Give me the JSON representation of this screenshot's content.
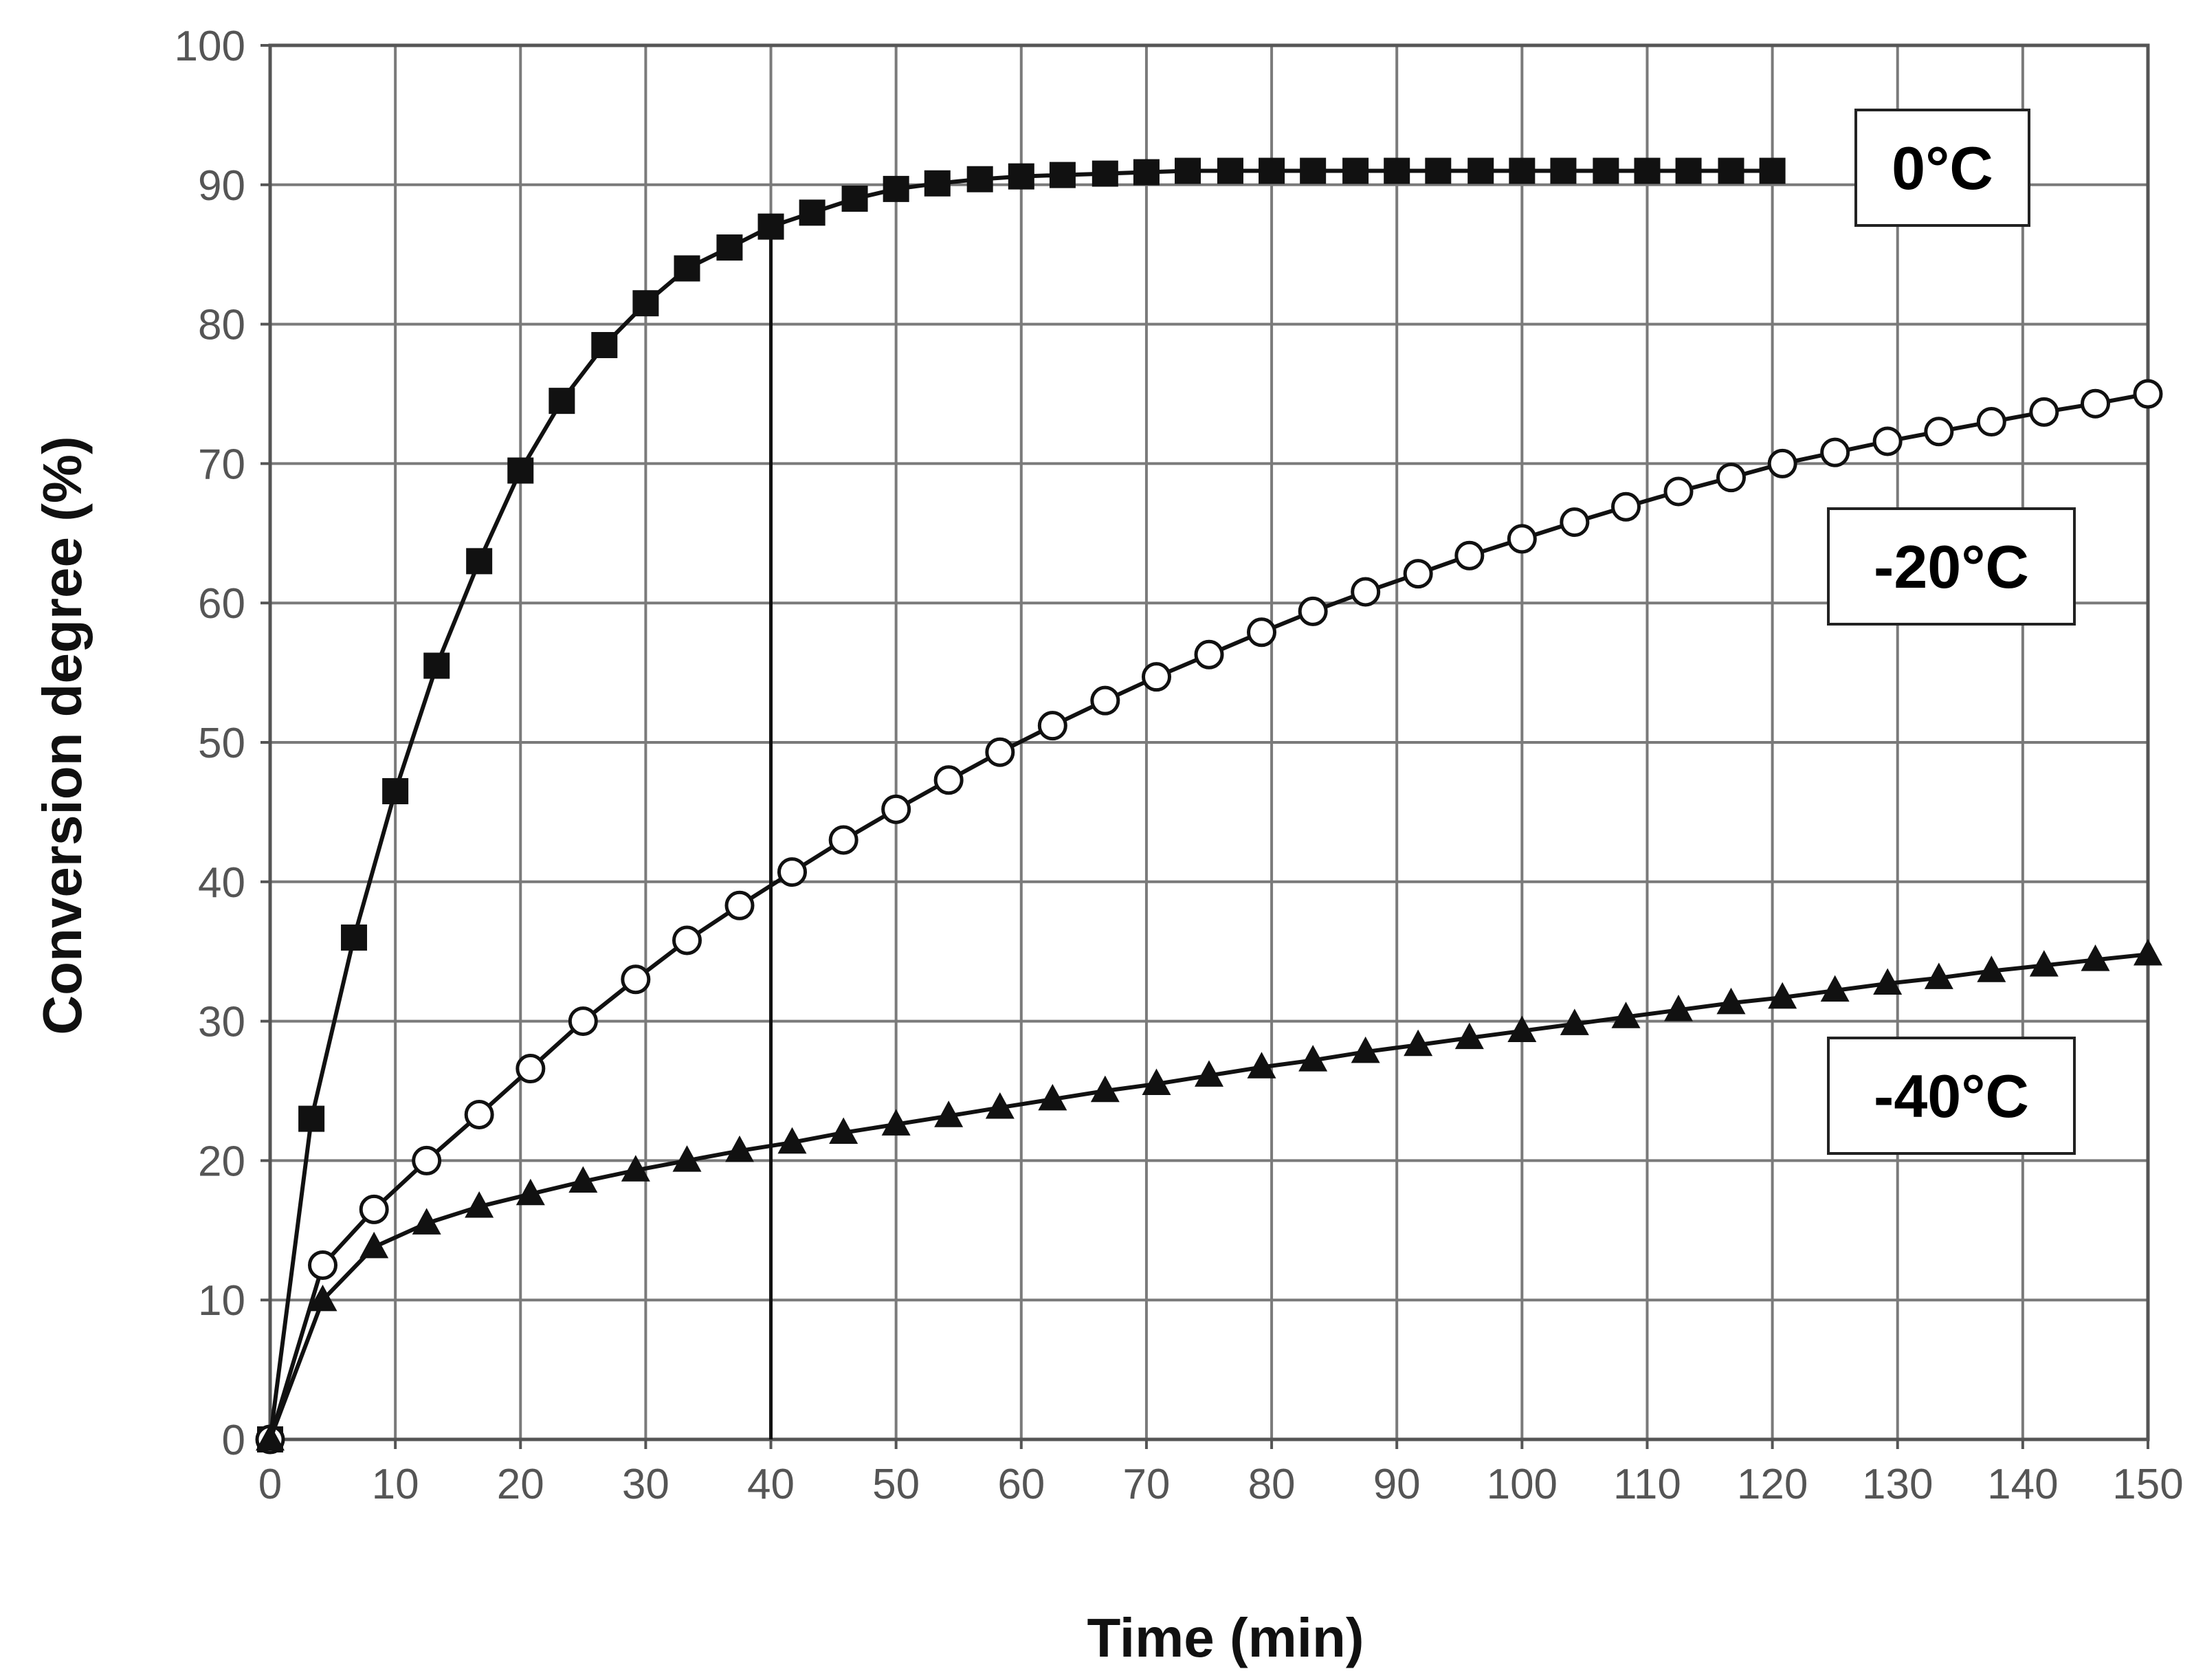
{
  "chart_data": {
    "type": "line",
    "title": "",
    "xlabel": "Time (min)",
    "ylabel": "Conversion degree (%)",
    "xlim": [
      0,
      150
    ],
    "ylim": [
      0,
      100
    ],
    "x_ticks": [
      0,
      10,
      20,
      30,
      40,
      50,
      60,
      70,
      80,
      90,
      100,
      110,
      120,
      130,
      140,
      150
    ],
    "y_ticks": [
      0,
      10,
      20,
      30,
      40,
      50,
      60,
      70,
      80,
      90,
      100
    ],
    "grid": true,
    "annotations": [
      {
        "type": "vertical-line",
        "x": 40,
        "from_y": 0,
        "to_y": 87
      }
    ],
    "series": [
      {
        "name": "0°C",
        "marker": "filled-square",
        "x": [
          0,
          3.3,
          6.7,
          10,
          13.3,
          16.7,
          20,
          23.3,
          26.7,
          30,
          33.3,
          36.7,
          40,
          43.3,
          46.7,
          50,
          53.3,
          56.7,
          60,
          63.3,
          66.7,
          70,
          73.3,
          76.7,
          80,
          83.3,
          86.7,
          90,
          93.3,
          96.7,
          100,
          103.3,
          106.7,
          110,
          113.3,
          116.7,
          120
        ],
        "values": [
          0,
          23,
          36,
          46.5,
          55.5,
          63,
          69.5,
          74.5,
          78.5,
          81.5,
          84,
          85.5,
          87,
          88,
          89,
          89.7,
          90.1,
          90.4,
          90.6,
          90.7,
          90.8,
          90.9,
          91,
          91,
          91,
          91,
          91,
          91,
          91,
          91,
          91,
          91,
          91,
          91,
          91,
          91,
          91
        ]
      },
      {
        "name": "-20°C",
        "marker": "open-circle",
        "x": [
          0,
          4.2,
          8.3,
          12.5,
          16.7,
          20.8,
          25,
          29.2,
          33.3,
          37.5,
          41.7,
          45.8,
          50,
          54.2,
          58.3,
          62.5,
          66.7,
          70.8,
          75,
          79.2,
          83.3,
          87.5,
          91.7,
          95.8,
          100,
          104.2,
          108.3,
          112.5,
          116.7,
          120.8,
          125,
          129.2,
          133.3,
          137.5,
          141.7,
          145.8,
          150
        ],
        "values": [
          0,
          12.5,
          16.5,
          20,
          23.3,
          26.6,
          30,
          33,
          35.8,
          38.3,
          40.7,
          43,
          45.2,
          47.3,
          49.3,
          51.2,
          53,
          54.7,
          56.3,
          57.9,
          59.4,
          60.8,
          62.1,
          63.4,
          64.6,
          65.8,
          66.9,
          68,
          69,
          70,
          70.8,
          71.6,
          72.3,
          73,
          73.7,
          74.3,
          75
        ]
      },
      {
        "name": "-40°C",
        "marker": "filled-triangle",
        "x": [
          0,
          4.2,
          8.3,
          12.5,
          16.7,
          20.8,
          25,
          29.2,
          33.3,
          37.5,
          41.7,
          45.8,
          50,
          54.2,
          58.3,
          62.5,
          66.7,
          70.8,
          75,
          79.2,
          83.3,
          87.5,
          91.7,
          95.8,
          100,
          104.2,
          108.3,
          112.5,
          116.7,
          120.8,
          125,
          129.2,
          133.3,
          137.5,
          141.7,
          145.8,
          150
        ],
        "values": [
          0,
          10,
          13.8,
          15.5,
          16.7,
          17.6,
          18.5,
          19.3,
          20,
          20.7,
          21.3,
          22,
          22.6,
          23.2,
          23.8,
          24.4,
          25,
          25.5,
          26.1,
          26.7,
          27.2,
          27.8,
          28.3,
          28.8,
          29.3,
          29.8,
          30.3,
          30.8,
          31.3,
          31.7,
          32.2,
          32.7,
          33.1,
          33.6,
          34,
          34.4,
          34.8
        ]
      }
    ]
  }
}
